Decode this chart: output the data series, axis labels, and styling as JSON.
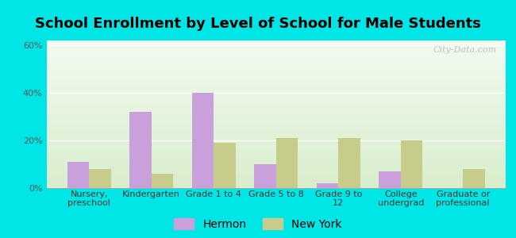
{
  "title": "School Enrollment by Level of School for Male Students",
  "categories": [
    "Nursery,\npreschool",
    "Kindergarten",
    "Grade 1 to 4",
    "Grade 5 to 8",
    "Grade 9 to\n12",
    "College\nundergrad",
    "Graduate or\nprofessional"
  ],
  "hermon": [
    11,
    32,
    40,
    10,
    2,
    7,
    0
  ],
  "new_york": [
    8,
    6,
    19,
    21,
    21,
    20,
    8
  ],
  "hermon_color": "#c9a0dc",
  "ny_color": "#c8cc8a",
  "hermon_label": "Hermon",
  "ny_label": "New York",
  "ylim": [
    0,
    62
  ],
  "yticks": [
    0,
    20,
    40,
    60
  ],
  "ytick_labels": [
    "0%",
    "20%",
    "40%",
    "60%"
  ],
  "background_outer": "#00e5e5",
  "background_inner_top": "#f2faf0",
  "background_inner_bottom": "#d8edcc",
  "title_fontsize": 13,
  "tick_fontsize": 8,
  "legend_fontsize": 10,
  "bar_width": 0.35,
  "watermark": "City-Data.com"
}
